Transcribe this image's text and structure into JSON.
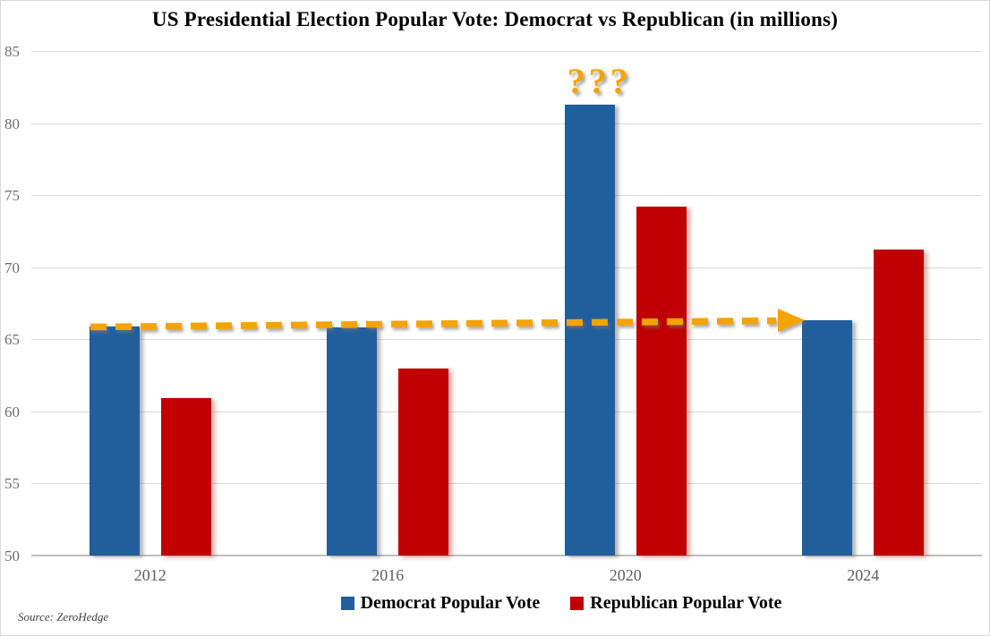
{
  "title": "US Presidential Election Popular Vote: Democrat vs Republican (in millions)",
  "source": "Source: ZeroHedge",
  "colors": {
    "democrat": "#215E9C",
    "republican": "#C00000",
    "annotation_orange": "#F5A302",
    "gridline": "#D9D9D9",
    "axis_line": "#BFBFBF",
    "tick_text": "#6F6F6F"
  },
  "chart_data": {
    "type": "bar",
    "categories": [
      "2012",
      "2016",
      "2020",
      "2024"
    ],
    "series": [
      {
        "name": "Democrat Popular Vote",
        "color_key": "democrat",
        "values": [
          65.9,
          65.8,
          81.3,
          66.3
        ]
      },
      {
        "name": "Republican Popular Vote",
        "color_key": "republican",
        "values": [
          60.9,
          63.0,
          74.2,
          71.2
        ]
      }
    ],
    "ylim": [
      50,
      85
    ],
    "yticks": [
      50,
      55,
      60,
      65,
      70,
      75,
      80,
      85
    ],
    "grid": true,
    "legend_position": "bottom",
    "annotations": {
      "question_marks": "???",
      "question_marks_target": {
        "category": "2020",
        "series": "Democrat Popular Vote"
      },
      "dashed_arrow": {
        "from_category": "2012",
        "to_category": "2024",
        "level": 66.0
      }
    }
  }
}
